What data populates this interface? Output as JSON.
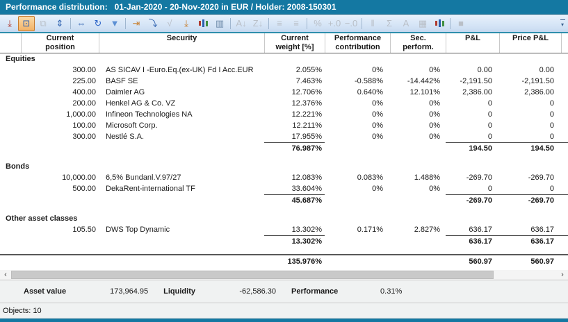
{
  "title_bar": {
    "title": "Performance distribution:   01-Jan-2020 - 20-Nov-2020 in EUR / Holder: 2008-150301"
  },
  "toolbar": {
    "overflow_glyph": "▾",
    "buttons": [
      {
        "name": "collapse-rows-icon",
        "glyph": "⤓",
        "state": "normal",
        "color": "#b03a2e"
      },
      {
        "name": "fit-table-icon",
        "glyph": "⊡",
        "state": "active",
        "color": "#2b5fae"
      },
      {
        "name": "group-rows-icon",
        "glyph": "⧉",
        "state": "disabled"
      },
      {
        "name": "expand-rows-icon",
        "glyph": "⇕",
        "state": "normal",
        "color": "#2b5fae"
      },
      {
        "type": "sep"
      },
      {
        "name": "fit-width-icon",
        "glyph": "⇔",
        "state": "normal",
        "color": "#2b5fae"
      },
      {
        "name": "refresh-icon",
        "glyph": "↻",
        "state": "normal",
        "color": "#2f66c9"
      },
      {
        "name": "filter-icon",
        "glyph": "▼",
        "state": "normal",
        "color": "#5b8fd4"
      },
      {
        "type": "sep"
      },
      {
        "name": "insert-column-icon",
        "glyph": "⇥",
        "state": "normal",
        "color": "#c87f2f"
      },
      {
        "name": "fill-down-icon",
        "glyph": "⤵",
        "state": "normal",
        "color": "#2b5fae"
      },
      {
        "name": "apply-formula-icon",
        "glyph": "√",
        "state": "disabled"
      },
      {
        "name": "import-values-icon",
        "glyph": "⤓",
        "state": "normal",
        "color": "#c87f2f"
      },
      {
        "name": "update-columns-icon",
        "type": "bars",
        "state": "normal"
      },
      {
        "name": "hidden-columns-icon",
        "glyph": "▥",
        "state": "normal",
        "color": "#6b88a8"
      },
      {
        "type": "sep"
      },
      {
        "name": "sort-az-icon",
        "glyph": "A↓",
        "state": "disabled"
      },
      {
        "name": "sort-za-icon",
        "glyph": "Z↓",
        "state": "disabled"
      },
      {
        "type": "sep"
      },
      {
        "name": "align-left-icon",
        "glyph": "≡",
        "state": "disabled"
      },
      {
        "name": "align-right-icon",
        "glyph": "≡",
        "state": "disabled"
      },
      {
        "type": "sep"
      },
      {
        "name": "percent-format-icon",
        "glyph": "%",
        "state": "disabled"
      },
      {
        "name": "add-decimals-icon",
        "glyph": "+.0",
        "state": "disabled"
      },
      {
        "name": "remove-decimals-icon",
        "glyph": "−.0",
        "state": "disabled"
      },
      {
        "type": "sep"
      },
      {
        "name": "adjust-columns-icon",
        "glyph": "‖",
        "state": "disabled"
      },
      {
        "name": "sum-icon",
        "glyph": "Σ",
        "state": "disabled"
      },
      {
        "name": "font-icon",
        "glyph": "A",
        "state": "disabled"
      },
      {
        "name": "table-format-icon",
        "glyph": "▦",
        "state": "disabled"
      },
      {
        "name": "chart-icon",
        "type": "bars",
        "state": "normal"
      },
      {
        "type": "sep"
      },
      {
        "name": "stop-icon",
        "glyph": "■",
        "state": "disabled"
      }
    ]
  },
  "table": {
    "columns": [
      {
        "key": "position",
        "label": "Current\nposition"
      },
      {
        "key": "security",
        "label": "Security"
      },
      {
        "key": "weight",
        "label": "Current\nweight [%]"
      },
      {
        "key": "contribution",
        "label": "Performance\ncontribution"
      },
      {
        "key": "sec_perform",
        "label": "Sec.\nperform."
      },
      {
        "key": "pnl",
        "label": "P&L"
      },
      {
        "key": "price_pnl",
        "label": "Price P&L"
      }
    ],
    "sections": [
      {
        "label": "Equities",
        "rows": [
          {
            "position": "300.00",
            "security": "AS SICAV I -Euro.Eq.(ex-UK) Fd I Acc.EUR",
            "weight": "2.055%",
            "contribution": "0%",
            "sec_perform": "0%",
            "pnl": "0.00",
            "price_pnl": "0.00"
          },
          {
            "position": "225.00",
            "security": "BASF SE",
            "weight": "7.463%",
            "contribution": "-0.588%",
            "sec_perform": "-14.442%",
            "pnl": "-2,191.50",
            "price_pnl": "-2,191.50"
          },
          {
            "position": "400.00",
            "security": "Daimler AG",
            "weight": "12.706%",
            "contribution": "0.640%",
            "sec_perform": "12.101%",
            "pnl": "2,386.00",
            "price_pnl": "2,386.00"
          },
          {
            "position": "200.00",
            "security": "Henkel AG & Co. VZ",
            "weight": "12.376%",
            "contribution": "0%",
            "sec_perform": "0%",
            "pnl": "0",
            "price_pnl": "0"
          },
          {
            "position": "1,000.00",
            "security": "Infineon Technologies NA",
            "weight": "12.221%",
            "contribution": "0%",
            "sec_perform": "0%",
            "pnl": "0",
            "price_pnl": "0"
          },
          {
            "position": "100.00",
            "security": "Microsoft Corp.",
            "weight": "12.211%",
            "contribution": "0%",
            "sec_perform": "0%",
            "pnl": "0",
            "price_pnl": "0"
          },
          {
            "position": "300.00",
            "security": "Nestlé S.A.",
            "weight": "17.955%",
            "contribution": "0%",
            "sec_perform": "0%",
            "pnl": "0",
            "price_pnl": "0"
          }
        ],
        "subtotal": {
          "weight": "76.987%",
          "pnl": "194.50",
          "price_pnl": "194.50"
        }
      },
      {
        "label": "Bonds",
        "rows": [
          {
            "position": "10,000.00",
            "security": "6,5% Bundanl.V.97/27",
            "weight": "12.083%",
            "contribution": "0.083%",
            "sec_perform": "1.488%",
            "pnl": "-269.70",
            "price_pnl": "-269.70"
          },
          {
            "position": "500.00",
            "security": "DekaRent-international TF",
            "weight": "33.604%",
            "contribution": "0%",
            "sec_perform": "0%",
            "pnl": "0",
            "price_pnl": "0"
          }
        ],
        "subtotal": {
          "weight": "45.687%",
          "pnl": "-269.70",
          "price_pnl": "-269.70"
        }
      },
      {
        "label": "Other asset classes",
        "rows": [
          {
            "position": "105.50",
            "security": "DWS Top Dynamic",
            "weight": "13.302%",
            "contribution": "0.171%",
            "sec_perform": "2.827%",
            "pnl": "636.17",
            "price_pnl": "636.17"
          }
        ],
        "subtotal": {
          "weight": "13.302%",
          "pnl": "636.17",
          "price_pnl": "636.17"
        }
      }
    ],
    "total": {
      "weight": "135.976%",
      "pnl": "560.97",
      "price_pnl": "560.97"
    }
  },
  "scrollbar": {
    "left_glyph": "‹",
    "right_glyph": "›"
  },
  "footer": {
    "items": [
      {
        "label": "Asset value",
        "value": "173,964.95"
      },
      {
        "label": "Liquidity",
        "value": "-62,586.30"
      },
      {
        "label": "Performance",
        "value": "0.31%"
      }
    ]
  },
  "status_bar": {
    "text": "Objects: 10"
  }
}
